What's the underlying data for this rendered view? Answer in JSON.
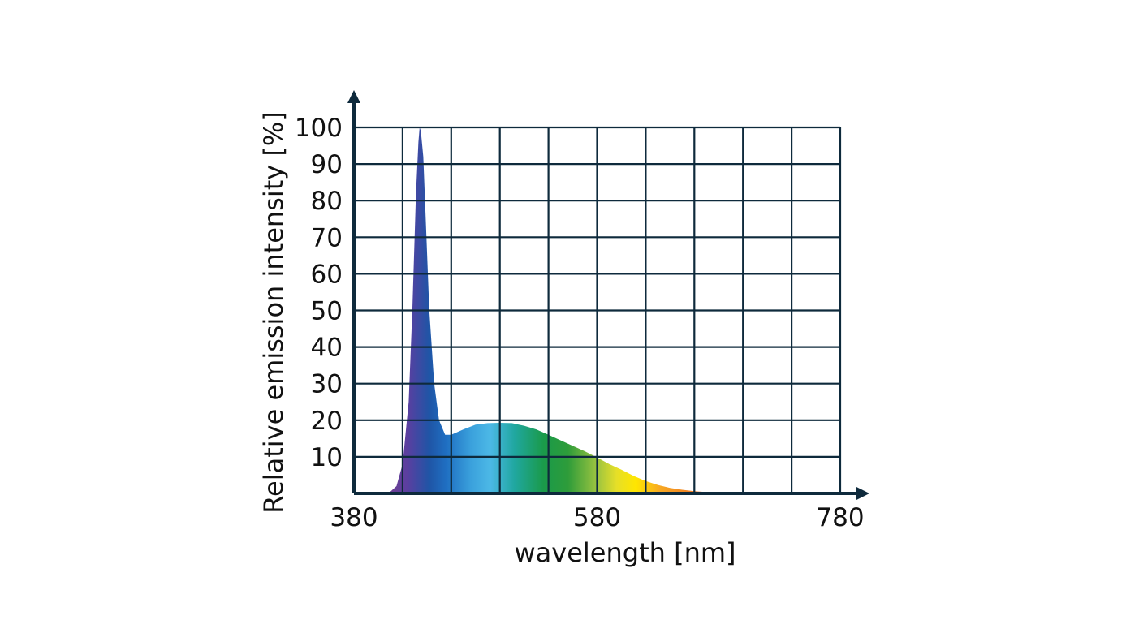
{
  "chart_data": {
    "type": "area",
    "title": "",
    "xlabel": "wavelength [nm]",
    "ylabel": "Relative emission intensity [%]",
    "xlim": [
      380,
      780
    ],
    "ylim": [
      0,
      100
    ],
    "x_ticks": [
      "380",
      "580",
      "780"
    ],
    "y_ticks": [
      "10",
      "20",
      "30",
      "40",
      "50",
      "60",
      "70",
      "80",
      "90",
      "100"
    ],
    "x_grid_step": 40,
    "y_grid_step": 10,
    "grid": true,
    "legend": "none",
    "colors": {
      "axis": "#0e2a3c",
      "grid": "#0e2a3c"
    },
    "series": [
      {
        "x": [
          405,
          410,
          415,
          420,
          425,
          428,
          431,
          433,
          434,
          435,
          437,
          439,
          442,
          446,
          450,
          455,
          460,
          470,
          480,
          490,
          500,
          510,
          520,
          530,
          540,
          550,
          560,
          570,
          580,
          590,
          600,
          610,
          620,
          630,
          640,
          650,
          660,
          670,
          680,
          690,
          700,
          710,
          720
        ],
        "y": [
          0,
          0.5,
          2,
          8,
          25,
          50,
          82,
          96,
          100,
          99,
          92,
          75,
          50,
          30,
          20,
          16,
          16,
          17.5,
          18.8,
          19.2,
          19.3,
          19.2,
          18.5,
          17.5,
          16,
          14.5,
          13,
          11.5,
          9.8,
          8,
          6.5,
          4.8,
          3.4,
          2.3,
          1.5,
          1.0,
          0.6,
          0.35,
          0.2,
          0.1,
          0.05,
          0.02,
          0
        ]
      }
    ]
  }
}
